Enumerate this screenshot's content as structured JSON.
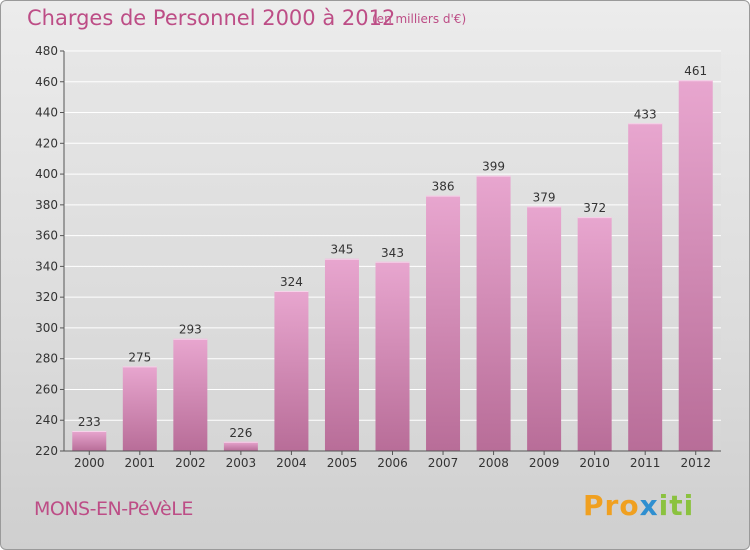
{
  "header": {
    "title": "Charges de Personnel 2000 à 2012",
    "unit": "(en milliers d'€)"
  },
  "footer": {
    "location": "MONS-EN-PéVèLE",
    "brand": [
      "Pro",
      "x",
      "iti"
    ]
  },
  "colors": {
    "accent": "#bd4d86",
    "bar_top": "#e8a6cf",
    "bar_bottom": "#b86d98",
    "grid": "#ffffff"
  },
  "chart_data": {
    "type": "bar",
    "title": "Charges de Personnel 2000 à 2012",
    "subtitle": "(en milliers d'€)",
    "categories": [
      "2000",
      "2001",
      "2002",
      "2003",
      "2004",
      "2005",
      "2006",
      "2007",
      "2008",
      "2009",
      "2010",
      "2011",
      "2012"
    ],
    "values": [
      233,
      275,
      293,
      226,
      324,
      345,
      343,
      386,
      399,
      379,
      372,
      433,
      461
    ],
    "ylim": [
      220,
      480
    ],
    "yticks": [
      220,
      240,
      260,
      280,
      300,
      320,
      340,
      360,
      380,
      400,
      420,
      440,
      460,
      480
    ],
    "grid": true,
    "data_labels": true
  }
}
